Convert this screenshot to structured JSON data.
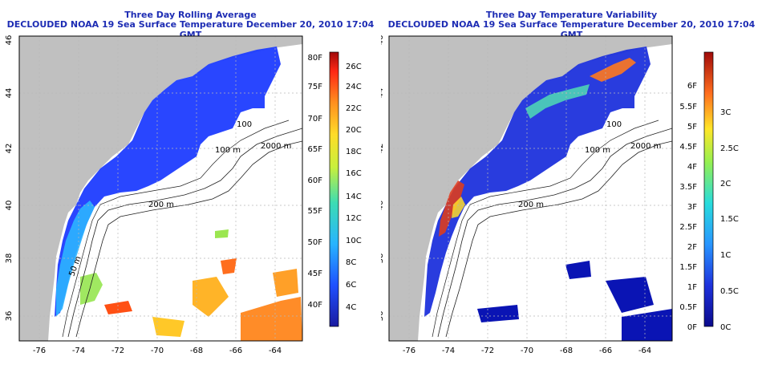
{
  "left": {
    "title": "Three Day Rolling Average",
    "subtitle": "DECLOUDED NOAA 19 Sea Surface Temperature December 20, 2010 17:04 GMT",
    "x_ticks": [
      "-76",
      "-74",
      "-72",
      "-70",
      "-68",
      "-66",
      "-64"
    ],
    "y_ticks": [
      "36",
      "38",
      "40",
      "42",
      "44",
      "46"
    ],
    "contours": [
      "200 m",
      "2000 m",
      "100",
      "100 m",
      "50 m"
    ],
    "colorbar_f": [
      "80F",
      "75F",
      "70F",
      "65F",
      "60F",
      "55F",
      "50F",
      "45F",
      "40F"
    ],
    "colorbar_c": [
      "26C",
      "24C",
      "22C",
      "20C",
      "18C",
      "16C",
      "14C",
      "12C",
      "10C",
      "8C",
      "6C",
      "4C"
    ]
  },
  "right": {
    "title": "Three Day Temperature Variability",
    "subtitle": "DECLOUDED NOAA 19 Sea Surface Temperature December 20, 2010 17:04 GMT",
    "x_ticks": [
      "-76",
      "-74",
      "-72",
      "-70",
      "-68",
      "-66",
      "-64"
    ],
    "y_ticks": [
      "36",
      "38",
      "40",
      "42",
      "44",
      "46"
    ],
    "contours": [
      "200 m",
      "2000 m",
      "100",
      "100 m"
    ],
    "colorbar_f": [
      "6F",
      "5.5F",
      "5F",
      "4.5F",
      "4F",
      "3.5F",
      "3F",
      "2.5F",
      "2F",
      "1.5F",
      "1F",
      "0.5F",
      "0F"
    ],
    "colorbar_c": [
      "3C",
      "2.5C",
      "2C",
      "1.5C",
      "1C",
      "0.5C",
      "0C"
    ]
  },
  "colors": {
    "title": "#1e2db4",
    "land": "#c0c0c0",
    "grid": "#b8b8b8",
    "sst_cold": "#1e3cff",
    "sst_warm": "#ff5a1e",
    "var_low": "#0a14b4",
    "var_high": "#b41414"
  }
}
